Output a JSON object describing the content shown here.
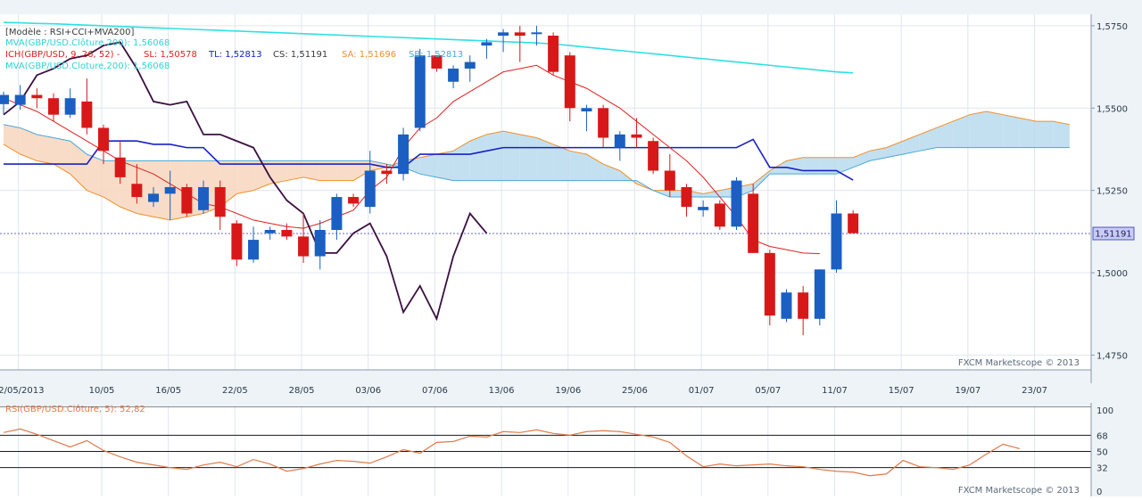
{
  "chart_data": [
    {
      "type": "candlestick",
      "panel": "main",
      "instrument": "GBP/USD",
      "timeframe": "daily",
      "legend": {
        "model": "[Modèle : RSI+CCI+MVA200]",
        "mva_line1": "MVA(GBP/USD.Clôture,200): 1,56068",
        "ich_label": "ICH(GBP/USD, 9, 26, 52) -",
        "ich_sl": "SL: 1,50578",
        "ich_tl": "TL: 1,52813",
        "ich_cs": "CS: 1,51191",
        "ich_sa": "SA: 1,51696",
        "ich_sb": "SB: 1,52813",
        "mva_line2": "MVA(GBP/USD.Cloture,200): 1,56068"
      },
      "y_ticks": [
        "1,5750",
        "1,5500",
        "1,5250",
        "1,5000",
        "1,4750"
      ],
      "y_tick_values": [
        1.575,
        1.55,
        1.525,
        1.5,
        1.475
      ],
      "ylim": [
        1.4705,
        1.5785
      ],
      "current_price_label": "1,51191",
      "current_price": 1.51191,
      "x_ticks": [
        "02/05/2013",
        "10/05",
        "16/05",
        "22/05",
        "28/05",
        "03/06",
        "07/06",
        "13/06",
        "19/06",
        "25/06",
        "01/07",
        "05/07",
        "11/07",
        "15/07",
        "19/07",
        "23/07"
      ],
      "x_tick_index": [
        1,
        6,
        10,
        14,
        18,
        22,
        26,
        30,
        34,
        38,
        42,
        46,
        50,
        54,
        58,
        62
      ],
      "watermark": "FXCM Marketscope © 2013",
      "candles": [
        {
          "o": 1.5512,
          "h": 1.555,
          "l": 1.548,
          "c": 1.554
        },
        {
          "o": 1.551,
          "h": 1.557,
          "l": 1.5495,
          "c": 1.554
        },
        {
          "o": 1.554,
          "h": 1.556,
          "l": 1.55,
          "c": 1.553
        },
        {
          "o": 1.553,
          "h": 1.5545,
          "l": 1.546,
          "c": 1.548
        },
        {
          "o": 1.548,
          "h": 1.556,
          "l": 1.547,
          "c": 1.553
        },
        {
          "o": 1.552,
          "h": 1.559,
          "l": 1.542,
          "c": 1.544
        },
        {
          "o": 1.544,
          "h": 1.545,
          "l": 1.533,
          "c": 1.537
        },
        {
          "o": 1.535,
          "h": 1.54,
          "l": 1.527,
          "c": 1.529
        },
        {
          "o": 1.527,
          "h": 1.533,
          "l": 1.521,
          "c": 1.523
        },
        {
          "o": 1.5215,
          "h": 1.526,
          "l": 1.52,
          "c": 1.524
        },
        {
          "o": 1.524,
          "h": 1.531,
          "l": 1.516,
          "c": 1.526
        },
        {
          "o": 1.526,
          "h": 1.527,
          "l": 1.517,
          "c": 1.518
        },
        {
          "o": 1.519,
          "h": 1.528,
          "l": 1.518,
          "c": 1.526
        },
        {
          "o": 1.526,
          "h": 1.528,
          "l": 1.513,
          "c": 1.517
        },
        {
          "o": 1.515,
          "h": 1.516,
          "l": 1.502,
          "c": 1.504
        },
        {
          "o": 1.504,
          "h": 1.514,
          "l": 1.503,
          "c": 1.51
        },
        {
          "o": 1.512,
          "h": 1.514,
          "l": 1.51,
          "c": 1.513
        },
        {
          "o": 1.513,
          "h": 1.515,
          "l": 1.51,
          "c": 1.511
        },
        {
          "o": 1.511,
          "h": 1.518,
          "l": 1.503,
          "c": 1.505
        },
        {
          "o": 1.505,
          "h": 1.516,
          "l": 1.501,
          "c": 1.513
        },
        {
          "o": 1.513,
          "h": 1.524,
          "l": 1.51,
          "c": 1.523
        },
        {
          "o": 1.523,
          "h": 1.524,
          "l": 1.52,
          "c": 1.521
        },
        {
          "o": 1.52,
          "h": 1.537,
          "l": 1.518,
          "c": 1.531
        },
        {
          "o": 1.531,
          "h": 1.533,
          "l": 1.527,
          "c": 1.53
        },
        {
          "o": 1.53,
          "h": 1.544,
          "l": 1.528,
          "c": 1.542
        },
        {
          "o": 1.544,
          "h": 1.568,
          "l": 1.543,
          "c": 1.566
        },
        {
          "o": 1.566,
          "h": 1.566,
          "l": 1.561,
          "c": 1.562
        },
        {
          "o": 1.558,
          "h": 1.563,
          "l": 1.556,
          "c": 1.562
        },
        {
          "o": 1.562,
          "h": 1.566,
          "l": 1.558,
          "c": 1.564
        },
        {
          "o": 1.569,
          "h": 1.571,
          "l": 1.565,
          "c": 1.57
        },
        {
          "o": 1.572,
          "h": 1.574,
          "l": 1.567,
          "c": 1.573
        },
        {
          "o": 1.573,
          "h": 1.575,
          "l": 1.564,
          "c": 1.572
        },
        {
          "o": 1.573,
          "h": 1.575,
          "l": 1.569,
          "c": 1.573
        },
        {
          "o": 1.572,
          "h": 1.573,
          "l": 1.56,
          "c": 1.561
        },
        {
          "o": 1.566,
          "h": 1.567,
          "l": 1.546,
          "c": 1.55
        },
        {
          "o": 1.549,
          "h": 1.551,
          "l": 1.543,
          "c": 1.55
        },
        {
          "o": 1.55,
          "h": 1.551,
          "l": 1.538,
          "c": 1.541
        },
        {
          "o": 1.538,
          "h": 1.543,
          "l": 1.534,
          "c": 1.542
        },
        {
          "o": 1.542,
          "h": 1.547,
          "l": 1.538,
          "c": 1.541
        },
        {
          "o": 1.54,
          "h": 1.541,
          "l": 1.53,
          "c": 1.531
        },
        {
          "o": 1.531,
          "h": 1.536,
          "l": 1.523,
          "c": 1.525
        },
        {
          "o": 1.526,
          "h": 1.527,
          "l": 1.517,
          "c": 1.52
        },
        {
          "o": 1.519,
          "h": 1.522,
          "l": 1.517,
          "c": 1.52
        },
        {
          "o": 1.521,
          "h": 1.522,
          "l": 1.513,
          "c": 1.514
        },
        {
          "o": 1.514,
          "h": 1.529,
          "l": 1.513,
          "c": 1.528
        },
        {
          "o": 1.524,
          "h": 1.527,
          "l": 1.506,
          "c": 1.506
        },
        {
          "o": 1.506,
          "h": 1.507,
          "l": 1.484,
          "c": 1.487
        },
        {
          "o": 1.486,
          "h": 1.495,
          "l": 1.485,
          "c": 1.494
        },
        {
          "o": 1.494,
          "h": 1.496,
          "l": 1.481,
          "c": 1.486
        },
        {
          "o": 1.486,
          "h": 1.501,
          "l": 1.484,
          "c": 1.501
        },
        {
          "o": 1.501,
          "h": 1.522,
          "l": 1.5,
          "c": 1.518
        },
        {
          "o": 1.518,
          "h": 1.519,
          "l": 1.512,
          "c": 1.512
        }
      ],
      "mva200": [
        1.576,
        1.5759,
        1.5757,
        1.5756,
        1.5754,
        1.5752,
        1.575,
        1.5748,
        1.5746,
        1.5744,
        1.5742,
        1.574,
        1.5738,
        1.5736,
        1.5734,
        1.5732,
        1.573,
        1.5728,
        1.5726,
        1.5724,
        1.5722,
        1.572,
        1.5718,
        1.5716,
        1.5714,
        1.5712,
        1.571,
        1.5708,
        1.5706,
        1.5704,
        1.5702,
        1.57,
        1.5698,
        1.5695,
        1.569,
        1.5685,
        1.568,
        1.5675,
        1.567,
        1.5665,
        1.566,
        1.5655,
        1.565,
        1.5645,
        1.564,
        1.5635,
        1.563,
        1.5625,
        1.562,
        1.5615,
        1.561,
        1.56068
      ],
      "tenkan": [
        1.533,
        1.533,
        1.533,
        1.533,
        1.533,
        1.533,
        1.54,
        1.54,
        1.54,
        1.539,
        1.539,
        1.538,
        1.538,
        1.533,
        1.533,
        1.533,
        1.533,
        1.533,
        1.533,
        1.533,
        1.533,
        1.533,
        1.533,
        1.532,
        1.532,
        1.536,
        1.536,
        1.536,
        1.536,
        1.537,
        1.538,
        1.538,
        1.538,
        1.538,
        1.538,
        1.538,
        1.538,
        1.538,
        1.538,
        1.538,
        1.538,
        1.538,
        1.538,
        1.538,
        1.538,
        1.5405,
        1.532,
        1.532,
        1.531,
        1.531,
        1.531,
        1.52813
      ],
      "kijun": [
        1.553,
        1.551,
        1.549,
        1.546,
        1.543,
        1.54,
        1.537,
        1.534,
        1.532,
        1.53,
        1.527,
        1.524,
        1.521,
        1.52,
        1.518,
        1.516,
        1.515,
        1.514,
        1.5135,
        1.515,
        1.517,
        1.519,
        1.525,
        1.529,
        1.538,
        1.544,
        1.547,
        1.552,
        1.555,
        1.558,
        1.561,
        1.562,
        1.563,
        1.56,
        1.558,
        1.556,
        1.553,
        1.55,
        1.546,
        1.542,
        1.538,
        1.534,
        1.529,
        1.523,
        1.517,
        1.51,
        1.508,
        1.507,
        1.506,
        1.50578
      ],
      "senkou_a": [
        1.539,
        1.536,
        1.534,
        1.533,
        1.53,
        1.525,
        1.523,
        1.52,
        1.518,
        1.517,
        1.516,
        1.517,
        1.518,
        1.52,
        1.524,
        1.525,
        1.527,
        1.528,
        1.529,
        1.528,
        1.528,
        1.528,
        1.531,
        1.532,
        1.534,
        1.535,
        1.536,
        1.537,
        1.54,
        1.542,
        1.543,
        1.542,
        1.541,
        1.539,
        1.537,
        1.536,
        1.533,
        1.531,
        1.527,
        1.525,
        1.525,
        1.525,
        1.524,
        1.525,
        1.526,
        1.527,
        1.531,
        1.534,
        1.535,
        1.535,
        1.535,
        1.535,
        1.537,
        1.538,
        1.54,
        1.542,
        1.544,
        1.546,
        1.548,
        1.549,
        1.548,
        1.547,
        1.546,
        1.546,
        1.545
      ],
      "senkou_b": [
        1.545,
        1.544,
        1.542,
        1.541,
        1.54,
        1.536,
        1.534,
        1.534,
        1.534,
        1.534,
        1.534,
        1.534,
        1.534,
        1.534,
        1.534,
        1.534,
        1.534,
        1.534,
        1.534,
        1.534,
        1.534,
        1.534,
        1.534,
        1.533,
        1.532,
        1.53,
        1.529,
        1.528,
        1.528,
        1.528,
        1.528,
        1.528,
        1.528,
        1.528,
        1.528,
        1.528,
        1.528,
        1.528,
        1.528,
        1.525,
        1.523,
        1.523,
        1.523,
        1.523,
        1.523,
        1.525,
        1.53,
        1.53,
        1.53,
        1.53,
        1.53,
        1.532,
        1.534,
        1.535,
        1.536,
        1.537,
        1.538,
        1.538,
        1.538,
        1.538,
        1.538,
        1.538,
        1.538,
        1.538,
        1.538
      ],
      "chikou": [
        1.548,
        1.552,
        1.56,
        1.562,
        1.565,
        1.566,
        1.569,
        1.57,
        1.562,
        1.552,
        1.551,
        1.552,
        1.542,
        1.542,
        1.54,
        1.538,
        1.529,
        1.522,
        1.518,
        1.506,
        1.506,
        1.512,
        1.515,
        1.505,
        1.488,
        1.496,
        1.486,
        1.505,
        1.518,
        1.512
      ]
    },
    {
      "type": "line",
      "panel": "rsi",
      "legend": "RSI(GBP/USD.Clôture, 5): 52,82",
      "y_ticks": [
        "100",
        "68",
        "50",
        "32",
        "0"
      ],
      "ylim": [
        0,
        100
      ],
      "levels": [
        68,
        50,
        32
      ],
      "watermark": "FXCM Marketscope © 2013",
      "values": [
        71,
        75,
        69,
        62,
        55,
        62,
        51,
        44,
        38,
        35,
        32,
        30,
        35,
        38,
        33,
        41,
        36,
        28,
        31,
        36,
        40,
        39,
        37,
        44,
        52,
        48,
        60,
        61,
        67,
        66,
        72,
        71,
        74,
        70,
        68,
        72,
        73,
        72,
        69,
        66,
        60,
        45,
        33,
        36,
        34,
        35,
        36,
        34,
        33,
        30,
        28,
        27,
        23,
        25,
        40,
        33,
        32,
        30,
        35,
        47,
        58,
        53
      ],
      "rsi_last": 52.82
    }
  ]
}
